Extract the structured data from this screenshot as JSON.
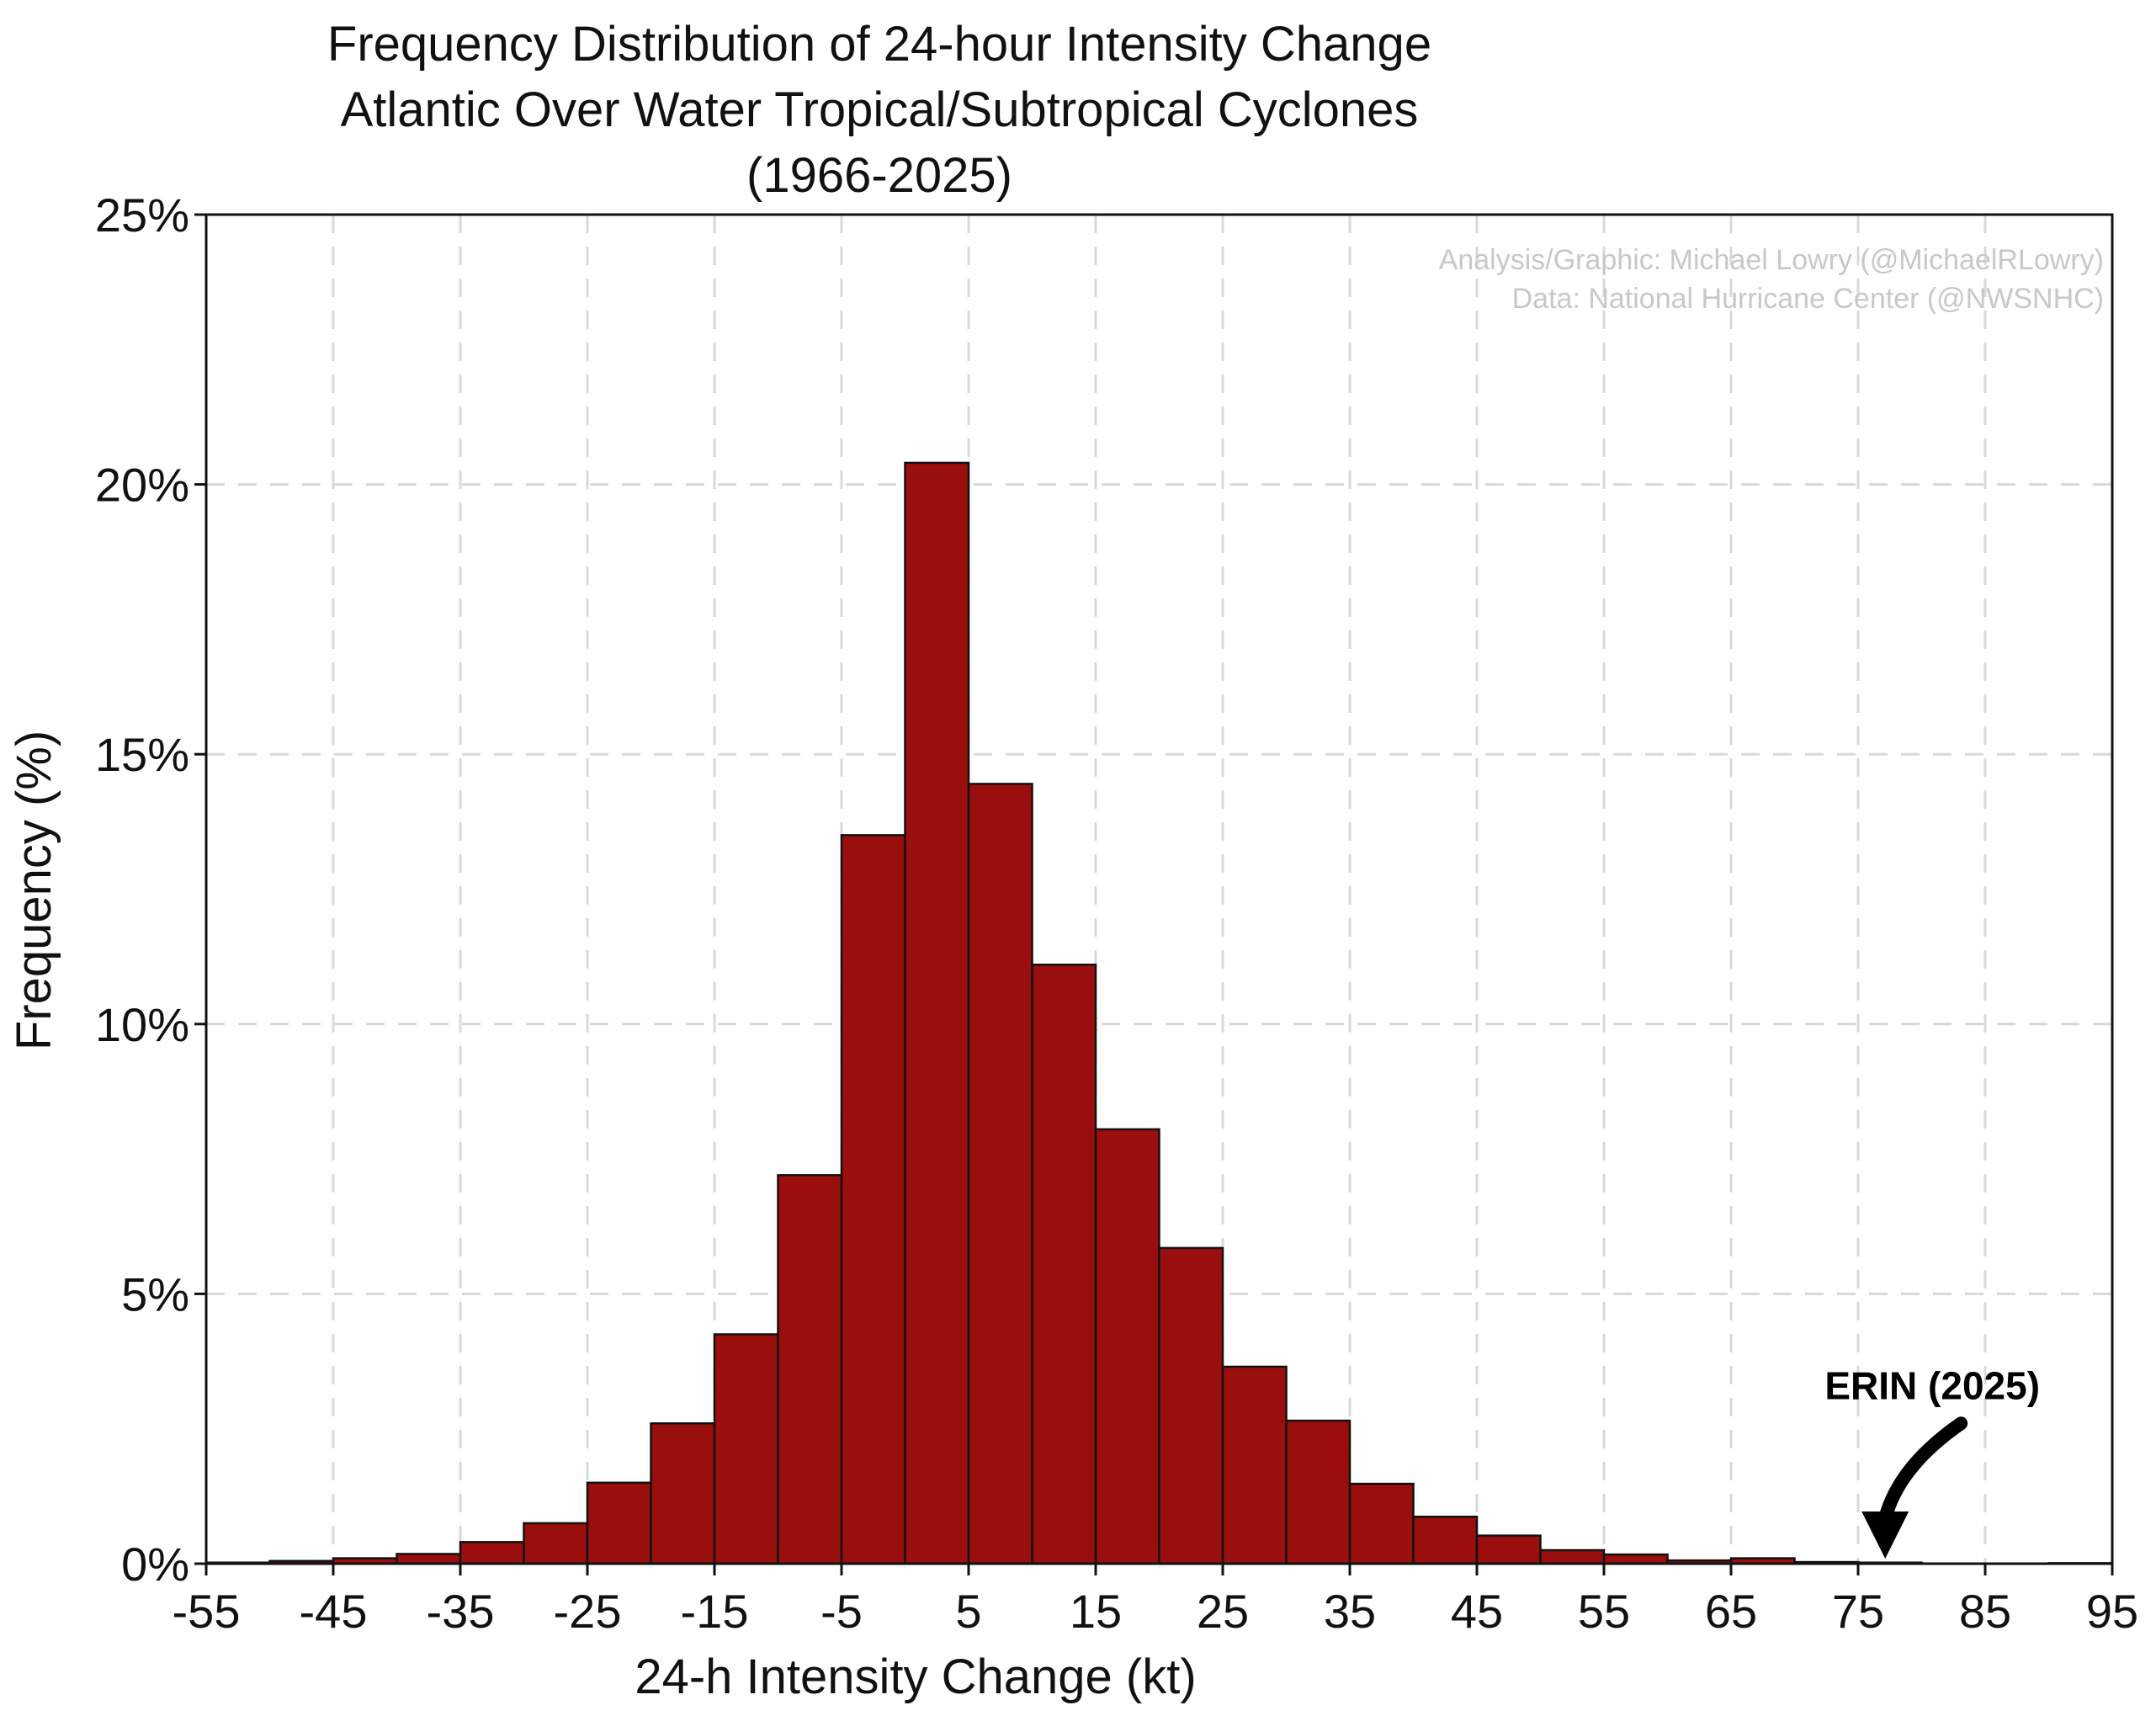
{
  "chart_data": {
    "type": "bar",
    "title": [
      "Frequency Distribution of 24-hour Intensity Change",
      "Atlantic Over Water Tropical/Subtropical Cyclones",
      "(1966-2025)"
    ],
    "xlabel": "24-h Intensity Change (kt)",
    "ylabel": "Frequency (%)",
    "xlim": [
      -55,
      95
    ],
    "ylim": [
      0,
      25
    ],
    "x_ticks": [
      -55,
      -45,
      -35,
      -25,
      -15,
      -5,
      5,
      15,
      25,
      35,
      45,
      55,
      65,
      75,
      85,
      95
    ],
    "x_tick_labels": [
      "-55",
      "-45",
      "-35",
      "-25",
      "-15",
      "-5",
      "5",
      "15",
      "25",
      "35",
      "45",
      "55",
      "65",
      "75",
      "85",
      "95"
    ],
    "y_ticks": [
      0,
      5,
      10,
      15,
      20,
      25
    ],
    "y_tick_labels": [
      "0%",
      "5%",
      "10%",
      "15%",
      "20%",
      "25%"
    ],
    "bin_width": 5,
    "bins": [
      {
        "start": -55,
        "value": 0.02
      },
      {
        "start": -50,
        "value": 0.05
      },
      {
        "start": -45,
        "value": 0.1
      },
      {
        "start": -40,
        "value": 0.18
      },
      {
        "start": -35,
        "value": 0.4
      },
      {
        "start": -30,
        "value": 0.75
      },
      {
        "start": -25,
        "value": 1.5
      },
      {
        "start": -20,
        "value": 2.6
      },
      {
        "start": -15,
        "value": 4.25
      },
      {
        "start": -10,
        "value": 7.2
      },
      {
        "start": -5,
        "value": 13.5
      },
      {
        "start": 0,
        "value": 20.4
      },
      {
        "start": 5,
        "value": 14.45
      },
      {
        "start": 10,
        "value": 11.1
      },
      {
        "start": 15,
        "value": 8.05
      },
      {
        "start": 20,
        "value": 5.85
      },
      {
        "start": 25,
        "value": 3.65
      },
      {
        "start": 30,
        "value": 2.65
      },
      {
        "start": 35,
        "value": 1.48
      },
      {
        "start": 40,
        "value": 0.87
      },
      {
        "start": 45,
        "value": 0.52
      },
      {
        "start": 50,
        "value": 0.25
      },
      {
        "start": 55,
        "value": 0.17
      },
      {
        "start": 60,
        "value": 0.06
      },
      {
        "start": 65,
        "value": 0.1
      },
      {
        "start": 70,
        "value": 0.03
      },
      {
        "start": 75,
        "value": 0.02
      },
      {
        "start": 80,
        "value": 0.0
      },
      {
        "start": 85,
        "value": 0.0
      },
      {
        "start": 90,
        "value": 0.01
      }
    ],
    "grid": true,
    "credits": [
      "Analysis/Graphic: Michael Lowry (@MichaelRLowry)",
      "Data: National Hurricane Center (@NWSNHC)"
    ],
    "annotation": {
      "text": "ERIN (2025)",
      "x": 77
    }
  },
  "colors": {
    "bar_fill": "#9b0e0e",
    "bar_edge": "#111111",
    "grid": "#d9d9d9",
    "credit_text": "#c8c8c8"
  }
}
